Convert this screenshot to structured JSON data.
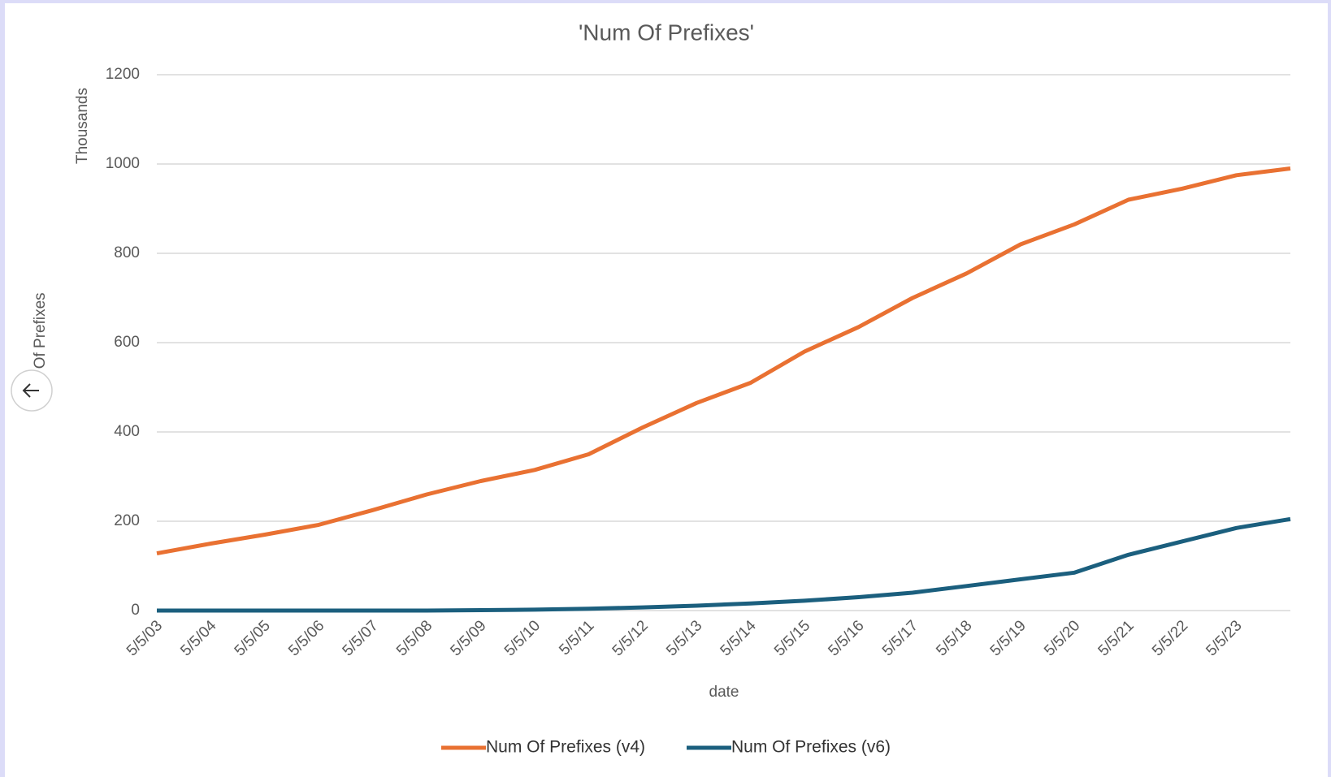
{
  "chart_data": {
    "type": "line",
    "title": "'Num Of Prefixes'",
    "display_unit": "Thousands",
    "y_label": "Num Of Prefixes",
    "x_label": "date",
    "categories": [
      "5/5/03",
      "5/5/04",
      "5/5/05",
      "5/5/06",
      "5/5/07",
      "5/5/08",
      "5/5/09",
      "5/5/10",
      "5/5/11",
      "5/5/12",
      "5/5/13",
      "5/5/14",
      "5/5/15",
      "5/5/16",
      "5/5/17",
      "5/5/18",
      "5/5/19",
      "5/5/20",
      "5/5/21",
      "5/5/22",
      "5/5/23",
      null
    ],
    "series": [
      {
        "name": "Num Of Prefixes (v4)",
        "color": "#e97132",
        "values": [
          128,
          150,
          170,
          192,
          225,
          260,
          290,
          315,
          350,
          410,
          465,
          510,
          580,
          635,
          700,
          755,
          820,
          865,
          920,
          945,
          975,
          990
        ]
      },
      {
        "name": "Num Of Prefixes (v6)",
        "color": "#1b5f7e",
        "values": [
          0,
          0,
          0,
          0,
          0,
          0,
          1,
          2,
          4,
          7,
          11,
          16,
          22,
          30,
          40,
          55,
          70,
          85,
          125,
          155,
          185,
          205
        ]
      }
    ],
    "ylim": [
      0,
      1200
    ],
    "yticks": [
      0,
      200,
      400,
      600,
      800,
      1000,
      1200
    ],
    "grid": true,
    "legend": "bottom"
  }
}
